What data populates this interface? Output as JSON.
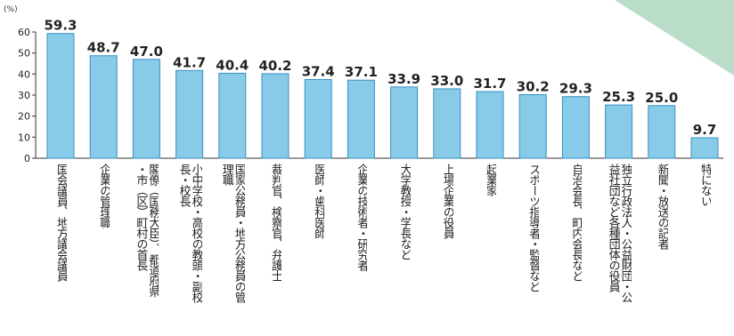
{
  "chart_data": {
    "type": "bar",
    "unit": "(%)",
    "ylim": [
      0,
      60
    ],
    "yticks": [
      0,
      10,
      20,
      30,
      40,
      50,
      60
    ],
    "grid": false,
    "categories": [
      "国会議員、地方議会議員",
      "企業の管理職",
      "閣僚（国務大臣）、都道府県・市（区）町村の首長",
      "小中学校・高校の教頭・副校長・校長",
      "国家公務員・地方公務員の管理職",
      "裁判官、検察官、弁護士",
      "医師・歯科医師",
      "企業の技術者・研究者",
      "大学教授・学長など",
      "上場企業の役員",
      "起業家",
      "スポーツ指導者・監督など",
      "自治会長、町内会長など",
      "独立行政法人・公益財団・公益社団など各種団体の役員",
      "新聞・放送の記者",
      "特にない"
    ],
    "values": [
      59.3,
      48.7,
      47.0,
      41.7,
      40.4,
      40.2,
      37.4,
      37.1,
      33.9,
      33.0,
      31.7,
      30.2,
      29.3,
      25.3,
      25.0,
      9.7
    ],
    "value_labels": [
      "59.3",
      "48.7",
      "47.0",
      "41.7",
      "40.4",
      "40.2",
      "37.4",
      "37.1",
      "33.9",
      "33.0",
      "31.7",
      "30.2",
      "29.3",
      "25.3",
      "25.0",
      "9.7"
    ],
    "ytick_labels": [
      "0",
      "10",
      "20",
      "30",
      "40",
      "50",
      "60"
    ]
  },
  "colors": {
    "bar_fill": "#87cbe8",
    "bar_stroke": "#3a8fc0",
    "axis": "#333333",
    "text": "#222222",
    "corner_shape": "#b9ddc8"
  }
}
